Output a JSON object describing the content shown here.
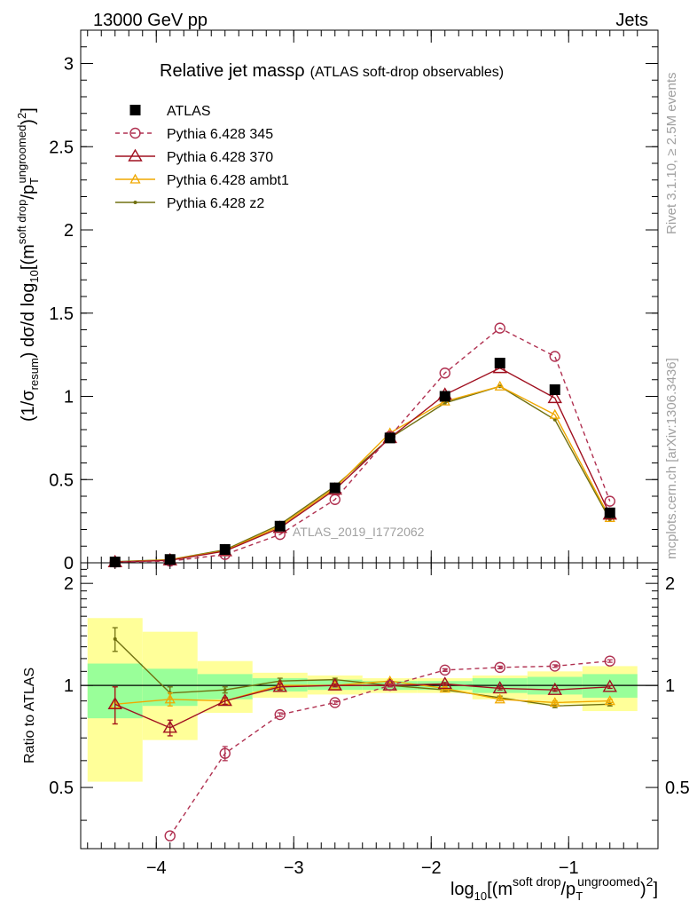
{
  "header": {
    "left": "13000 GeV pp",
    "right": "Jets"
  },
  "side_labels": {
    "rivet": "Rivet 3.1.10, ≥ 2.5M events",
    "mcplots": "mcplots.cern.ch [arXiv:1306.3436]"
  },
  "chart_data": [
    {
      "type": "line",
      "panel": "main",
      "title": "Relative jet massρ",
      "subtitle": "(ATLAS soft-drop observables)",
      "watermark": "ATLAS_2019_I1772062",
      "ylabel": {
        "prefix": "(1/σ",
        "sub1": "resum",
        "mid": ") dσ/d log",
        "sub2": "10",
        "post": "[(m",
        "sup1": "soft drop",
        "div": "/p",
        "sub3": "T",
        "sup2": "ungroomed",
        "end": ")",
        "sup3": "2",
        "close": "]"
      },
      "xlim": [
        -4.55,
        -0.35
      ],
      "ylim": [
        0,
        3.2
      ],
      "yticks": [
        {
          "v": 0,
          "label": "0"
        },
        {
          "v": 0.5,
          "label": "0.5"
        },
        {
          "v": 1,
          "label": "1"
        },
        {
          "v": 1.5,
          "label": "1.5"
        },
        {
          "v": 2,
          "label": "2"
        },
        {
          "v": 2.5,
          "label": "2.5"
        },
        {
          "v": 3,
          "label": "3"
        }
      ],
      "x": [
        -4.3,
        -3.9,
        -3.5,
        -3.1,
        -2.7,
        -2.3,
        -1.9,
        -1.5,
        -1.1,
        -0.7
      ],
      "series": [
        {
          "name": "ATLAS",
          "color": "#000000",
          "style": "data",
          "values": [
            0.005,
            0.02,
            0.08,
            0.22,
            0.45,
            0.75,
            1.0,
            1.2,
            1.04,
            0.3
          ]
        },
        {
          "name": "Pythia 6.428 345",
          "color": "#b03050",
          "style": "circle-dashed",
          "values": [
            0.004,
            0.01,
            0.05,
            0.17,
            0.38,
            0.76,
            1.14,
            1.41,
            1.24,
            0.37
          ]
        },
        {
          "name": "Pythia 6.428 370",
          "color": "#a01020",
          "style": "triangle",
          "values": [
            0.004,
            0.015,
            0.07,
            0.21,
            0.44,
            0.75,
            1.01,
            1.17,
            0.99,
            0.29
          ]
        },
        {
          "name": "Pythia 6.428 ambt1",
          "color": "#f0a800",
          "style": "small-triangle",
          "values": [
            0.004,
            0.018,
            0.072,
            0.22,
            0.45,
            0.78,
            0.97,
            1.06,
            0.89,
            0.27
          ]
        },
        {
          "name": "Pythia 6.428 z2",
          "color": "#707010",
          "style": "dot",
          "values": [
            0.007,
            0.019,
            0.078,
            0.23,
            0.46,
            0.75,
            0.96,
            1.06,
            0.86,
            0.26
          ]
        }
      ]
    },
    {
      "type": "line",
      "panel": "ratio",
      "ylabel": "Ratio to ATLAS",
      "xlabel": {
        "pre": "log",
        "sub": "10",
        "post": "[(m",
        "sup1": "soft drop",
        "div": "/p",
        "sub2": "T",
        "sup2": "ungroomed",
        "end": ")",
        "sup3": "2",
        "close": "]"
      },
      "xlim": [
        -4.55,
        -0.35
      ],
      "ylim": [
        0.33,
        2.3
      ],
      "yticks": [
        {
          "v": 0.5,
          "label": "0.5"
        },
        {
          "v": 1,
          "label": "1"
        },
        {
          "v": 2,
          "label": "2"
        }
      ],
      "xticks": [
        {
          "v": -4,
          "label": "−4"
        },
        {
          "v": -3,
          "label": "−3"
        },
        {
          "v": -2,
          "label": "−2"
        },
        {
          "v": -1,
          "label": "−1"
        }
      ],
      "bands": [
        {
          "x0": -4.5,
          "x1": -4.1,
          "yellow": [
            0.52,
            1.58
          ],
          "green": [
            0.8,
            1.16
          ]
        },
        {
          "x0": -4.1,
          "x1": -3.7,
          "yellow": [
            0.69,
            1.44
          ],
          "green": [
            0.87,
            1.12
          ]
        },
        {
          "x0": -3.7,
          "x1": -3.3,
          "yellow": [
            0.83,
            1.18
          ],
          "green": [
            0.91,
            1.08
          ]
        },
        {
          "x0": -3.3,
          "x1": -2.9,
          "yellow": [
            0.92,
            1.09
          ],
          "green": [
            0.96,
            1.05
          ]
        },
        {
          "x0": -2.9,
          "x1": -2.5,
          "yellow": [
            0.94,
            1.07
          ],
          "green": [
            0.97,
            1.04
          ]
        },
        {
          "x0": -2.5,
          "x1": -2.1,
          "yellow": [
            0.95,
            1.05
          ],
          "green": [
            0.97,
            1.03
          ]
        },
        {
          "x0": -2.1,
          "x1": -1.7,
          "yellow": [
            0.95,
            1.05
          ],
          "green": [
            0.97,
            1.03
          ]
        },
        {
          "x0": -1.7,
          "x1": -1.3,
          "yellow": [
            0.91,
            1.07
          ],
          "green": [
            0.95,
            1.05
          ]
        },
        {
          "x0": -1.3,
          "x1": -0.9,
          "yellow": [
            0.88,
            1.1
          ],
          "green": [
            0.94,
            1.06
          ]
        },
        {
          "x0": -0.9,
          "x1": -0.5,
          "yellow": [
            0.84,
            1.14
          ],
          "green": [
            0.92,
            1.08
          ]
        }
      ],
      "x": [
        -4.3,
        -3.9,
        -3.5,
        -3.1,
        -2.7,
        -2.3,
        -1.9,
        -1.5,
        -1.1,
        -0.7
      ],
      "series": [
        {
          "name": "Pythia 6.428 345",
          "color": "#b03050",
          "style": "circle-dashed",
          "values": [
            null,
            0.36,
            0.63,
            0.82,
            0.89,
            1.0,
            1.11,
            1.13,
            1.14,
            1.18
          ],
          "err": [
            0,
            0,
            0.03,
            0.01,
            0.01,
            0.01,
            0.01,
            0.01,
            0.01,
            0.01
          ]
        },
        {
          "name": "Pythia 6.428 370",
          "color": "#a01020",
          "style": "triangle",
          "values": [
            0.88,
            0.75,
            0.9,
            0.99,
            1.0,
            1.0,
            1.01,
            0.98,
            0.97,
            0.99
          ],
          "err": [
            0.11,
            0.04,
            0.02,
            0.02,
            0.01,
            0.01,
            0.01,
            0.01,
            0.01,
            0.01
          ]
        },
        {
          "name": "Pythia 6.428 ambt1",
          "color": "#f0a800",
          "style": "small-triangle",
          "values": [
            0.88,
            0.91,
            0.9,
            1.0,
            1.0,
            1.03,
            0.98,
            0.91,
            0.89,
            0.9
          ],
          "err": [
            0.11,
            0.04,
            0.02,
            0.02,
            0.01,
            0.01,
            0.01,
            0.01,
            0.01,
            0.01
          ]
        },
        {
          "name": "Pythia 6.428 z2",
          "color": "#707010",
          "style": "dot",
          "values": [
            1.37,
            0.95,
            0.97,
            1.03,
            1.04,
            1.0,
            0.97,
            0.92,
            0.87,
            0.88
          ],
          "err": [
            0.11,
            0.04,
            0.02,
            0.02,
            0.01,
            0.01,
            0.01,
            0.01,
            0.01,
            0.01
          ]
        }
      ]
    }
  ]
}
